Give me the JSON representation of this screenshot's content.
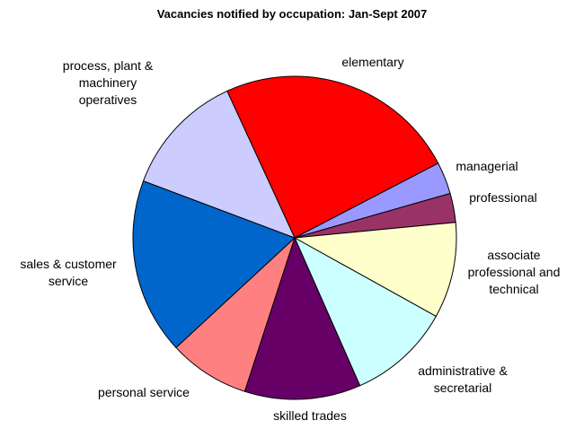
{
  "chart_data": {
    "type": "pie",
    "title": "Vacancies notified by occupation: Jan-Sept 2007",
    "categories": [
      "elementary",
      "managerial",
      "professional",
      "associate professional and technical",
      "administrative & secretarial",
      "skilled trades",
      "personal service",
      "sales & customer service",
      "process, plant & machinery operatives"
    ],
    "values": [
      24.2,
      3.2,
      2.9,
      9.6,
      10.3,
      11.6,
      8.1,
      17.6,
      12.4
    ],
    "colors": [
      "#ff0000",
      "#9999ff",
      "#993366",
      "#ffffcc",
      "#ccffff",
      "#660066",
      "#ff8080",
      "#0066cc",
      "#ccccff"
    ]
  }
}
